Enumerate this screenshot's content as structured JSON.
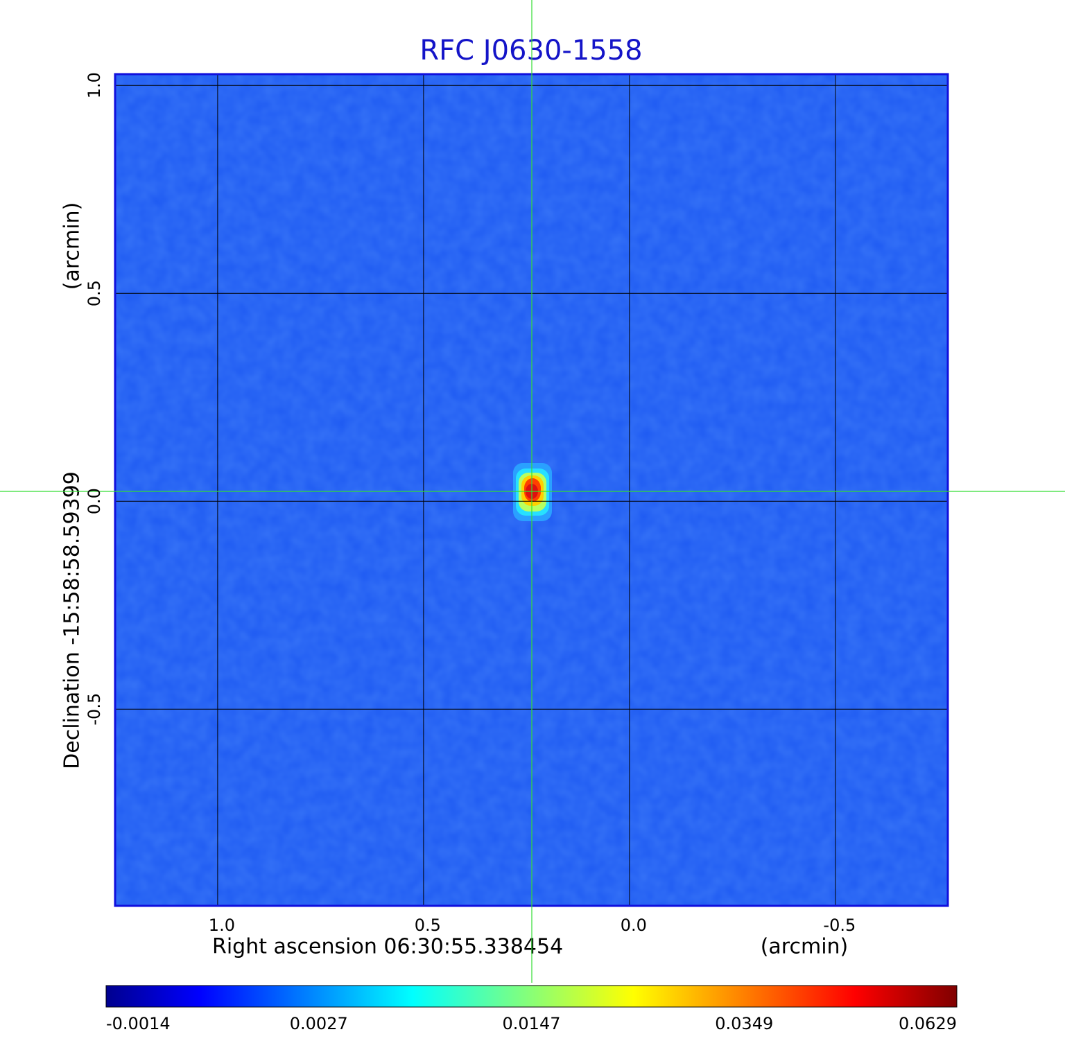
{
  "chart_data": {
    "type": "image",
    "title": "RFC J0630-1558",
    "x_label": "Right ascension  06:30:55.338454",
    "x_unit": "(arcmin)",
    "y_label": "Declination  -15:58:58.59399",
    "y_unit": "(arcmin)",
    "xlim": [
      1.249,
      -0.773
    ],
    "xticks": [
      {
        "value": 1,
        "label": "1.0"
      },
      0.5,
      {
        "value": 0,
        "label": "0.0"
      },
      -0.5
    ],
    "ylim": [
      -0.973,
      1.027
    ],
    "yticks": [
      {
        "value": 1,
        "label": "1.0"
      },
      0.5,
      {
        "value": 0,
        "label": "0.0"
      },
      -0.5
    ],
    "grid": true,
    "colormap": "jet",
    "colorbar_ticks": [
      -0.0014,
      0.0027,
      0.0147,
      0.0349,
      0.0629
    ]
  }
}
